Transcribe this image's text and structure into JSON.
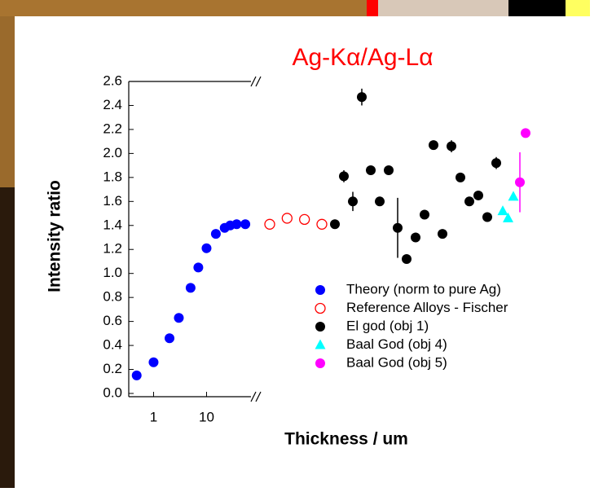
{
  "chart_data": {
    "type": "scatter",
    "title": "Ag-Kα/Ag-Lα",
    "title_color": "#ff0000",
    "x_label": "Thickness / um",
    "y_label": "Intensity ratio",
    "x_log": true,
    "xlim": [
      0.34,
      69
    ],
    "xticks": [
      1,
      10
    ],
    "ylim": [
      0,
      2.6
    ],
    "yticks": [
      {
        "value": 0,
        "label": "0.0"
      },
      0.2,
      0.4,
      0.6,
      0.8,
      {
        "value": 1,
        "label": "1.0"
      },
      1.2,
      1.4,
      1.6,
      1.8,
      {
        "value": 2,
        "label": "2.0"
      },
      2.2,
      2.4,
      2.6
    ],
    "legend": "lower right",
    "series": [
      {
        "name": "Theory (norm to pure Ag)",
        "color": "#0000ff",
        "marker": "circle",
        "filled": true,
        "x": [
          0.48,
          1,
          2,
          3,
          5,
          7,
          10,
          15,
          22,
          28,
          37,
          54
        ],
        "values": [
          0.15,
          0.26,
          0.46,
          0.63,
          0.88,
          1.05,
          1.21,
          1.33,
          1.38,
          1.4,
          1.41,
          1.41
        ]
      },
      {
        "name": "Reference Alloys - Fischer",
        "color": "#ff0000",
        "marker": "circle",
        "filled": false,
        "values": [
          1.41,
          1.46,
          1.45,
          1.41
        ]
      },
      {
        "name": "El god (obj 1)",
        "color": "#000000",
        "marker": "circle",
        "filled": true,
        "values": [
          1.41,
          1.81,
          1.6,
          2.47,
          1.86,
          1.6,
          1.86,
          1.38,
          1.12,
          1.3,
          1.49,
          2.07,
          1.33,
          2.06,
          1.8,
          1.6,
          1.65,
          1.47,
          1.92
        ],
        "errors": [
          null,
          0.05,
          0.08,
          0.07,
          null,
          null,
          null,
          0.25,
          null,
          null,
          null,
          null,
          null,
          0.05,
          null,
          null,
          null,
          null,
          0.05
        ]
      },
      {
        "name": "Baal God (obj 4)",
        "color": "#00ffff",
        "marker": "triangle",
        "filled": true,
        "values": [
          1.52,
          1.46,
          1.64
        ]
      },
      {
        "name": "Baal God (obj 5)",
        "color": "#ff00ff",
        "marker": "circle",
        "filled": true,
        "values": [
          1.76,
          2.17
        ],
        "errors": [
          0.25,
          null
        ]
      }
    ]
  }
}
